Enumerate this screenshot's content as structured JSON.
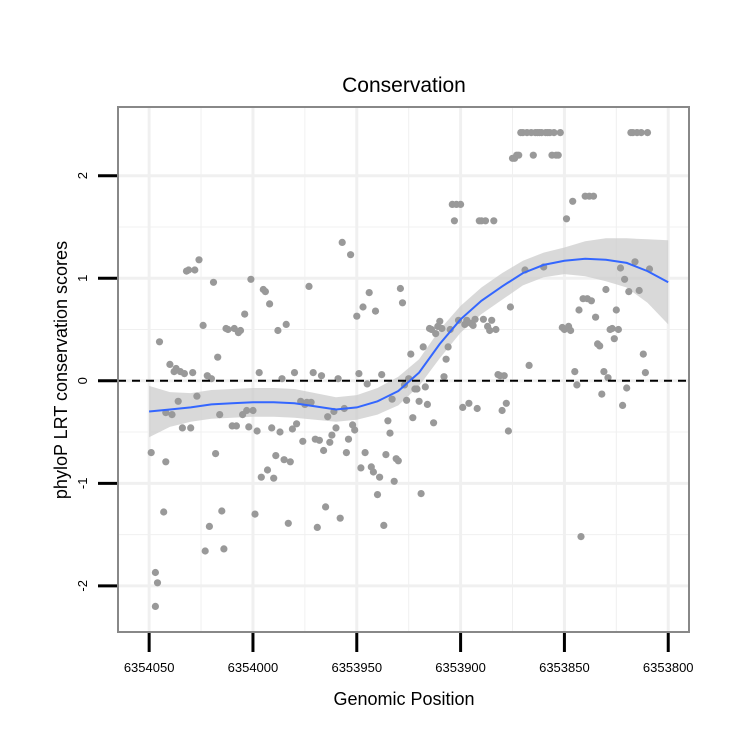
{
  "chart_data": {
    "type": "scatter",
    "title": "Conservation",
    "xlabel": "Genomic Position",
    "ylabel": "phyloP LRT conservation scores",
    "x_reversed": true,
    "xlim": [
      6354065,
      6353790
    ],
    "ylim": [
      -2.45,
      2.67
    ],
    "xticks": [
      6354050,
      6354000,
      6353950,
      6353900,
      6353850,
      6353800
    ],
    "xtick_labels": [
      "6354050",
      "6354000",
      "6353950",
      "6353900",
      "6353850",
      "6353800"
    ],
    "yticks": [
      -2,
      -1,
      0,
      1,
      2
    ],
    "ytick_labels": [
      "-2",
      "-1",
      "0",
      "1",
      "2"
    ],
    "reference_line": {
      "y": 0,
      "style": "dashed"
    },
    "grid": true,
    "legend": "none",
    "colors": {
      "points": "#999999",
      "smooth_line": "#3366ff",
      "confidence_band": "#cccccc",
      "grid": "#f0f0f0",
      "panel_border": "#888888"
    },
    "points": [
      [
        6354049,
        -0.7
      ],
      [
        6354047,
        -1.87
      ],
      [
        6354047,
        -2.2
      ],
      [
        6354046,
        -1.97
      ],
      [
        6354045,
        0.38
      ],
      [
        6354043,
        -1.28
      ],
      [
        6354042,
        -0.79
      ],
      [
        6354042,
        -0.31
      ],
      [
        6354040,
        0.16
      ],
      [
        6354039,
        -0.33
      ],
      [
        6354038,
        0.09
      ],
      [
        6354037,
        0.12
      ],
      [
        6354036,
        -0.2
      ],
      [
        6354035,
        0.09
      ],
      [
        6354034,
        -0.46
      ],
      [
        6354033,
        0.07
      ],
      [
        6354032,
        1.07
      ],
      [
        6354031,
        1.08
      ],
      [
        6354030,
        -0.46
      ],
      [
        6354029,
        0.08
      ],
      [
        6354028,
        1.08
      ],
      [
        6354027,
        -0.15
      ],
      [
        6354026,
        1.18
      ],
      [
        6354024,
        0.54
      ],
      [
        6354023,
        -1.66
      ],
      [
        6354022,
        0.05
      ],
      [
        6354021,
        -1.42
      ],
      [
        6354020,
        0.02
      ],
      [
        6354019,
        0.96
      ],
      [
        6354018,
        -0.71
      ],
      [
        6354017,
        0.23
      ],
      [
        6354016,
        -0.33
      ],
      [
        6354015,
        -1.27
      ],
      [
        6354014,
        -1.64
      ],
      [
        6354013,
        0.51
      ],
      [
        6354012,
        0.5
      ],
      [
        6354010,
        -0.44
      ],
      [
        6354009,
        0.51
      ],
      [
        6354008,
        -0.44
      ],
      [
        6354007,
        0.47
      ],
      [
        6354006,
        0.49
      ],
      [
        6354005,
        -0.33
      ],
      [
        6354004,
        0.65
      ],
      [
        6354003,
        -0.29
      ],
      [
        6354002,
        -0.45
      ],
      [
        6354001,
        0.99
      ],
      [
        6354000,
        -0.29
      ],
      [
        6353999,
        -1.3
      ],
      [
        6353998,
        -0.49
      ],
      [
        6353997,
        0.08
      ],
      [
        6353996,
        -0.94
      ],
      [
        6353995,
        0.89
      ],
      [
        6353994,
        0.87
      ],
      [
        6353993,
        -0.87
      ],
      [
        6353992,
        0.75
      ],
      [
        6353991,
        -0.46
      ],
      [
        6353990,
        -0.95
      ],
      [
        6353989,
        -0.73
      ],
      [
        6353988,
        0.49
      ],
      [
        6353987,
        -0.5
      ],
      [
        6353986,
        0.02
      ],
      [
        6353985,
        -0.77
      ],
      [
        6353984,
        0.55
      ],
      [
        6353983,
        -1.39
      ],
      [
        6353982,
        -0.79
      ],
      [
        6353981,
        -0.47
      ],
      [
        6353980,
        0.08
      ],
      [
        6353979,
        -0.42
      ],
      [
        6353977,
        -0.2
      ],
      [
        6353976,
        -0.59
      ],
      [
        6353975,
        -0.23
      ],
      [
        6353974,
        -0.21
      ],
      [
        6353973,
        0.92
      ],
      [
        6353972,
        -0.21
      ],
      [
        6353971,
        0.08
      ],
      [
        6353970,
        -0.57
      ],
      [
        6353969,
        -1.43
      ],
      [
        6353968,
        -0.58
      ],
      [
        6353967,
        0.05
      ],
      [
        6353966,
        -0.68
      ],
      [
        6353965,
        -1.23
      ],
      [
        6353964,
        -0.35
      ],
      [
        6353963,
        -0.6
      ],
      [
        6353962,
        -0.53
      ],
      [
        6353961,
        -0.3
      ],
      [
        6353960,
        -0.46
      ],
      [
        6353959,
        0.02
      ],
      [
        6353958,
        -1.34
      ],
      [
        6353957,
        1.35
      ],
      [
        6353956,
        -0.27
      ],
      [
        6353955,
        -0.7
      ],
      [
        6353954,
        -0.57
      ],
      [
        6353953,
        1.23
      ],
      [
        6353952,
        -0.43
      ],
      [
        6353951,
        -0.48
      ],
      [
        6353950,
        0.63
      ],
      [
        6353949,
        0.07
      ],
      [
        6353948,
        -0.85
      ],
      [
        6353947,
        0.72
      ],
      [
        6353946,
        -0.7
      ],
      [
        6353945,
        -0.03
      ],
      [
        6353944,
        0.86
      ],
      [
        6353943,
        -0.84
      ],
      [
        6353942,
        -0.89
      ],
      [
        6353941,
        0.68
      ],
      [
        6353940,
        -1.11
      ],
      [
        6353939,
        -0.94
      ],
      [
        6353938,
        0.06
      ],
      [
        6353937,
        -1.41
      ],
      [
        6353936,
        -0.72
      ],
      [
        6353935,
        -0.39
      ],
      [
        6353934,
        -0.51
      ],
      [
        6353933,
        -0.18
      ],
      [
        6353932,
        -0.98
      ],
      [
        6353931,
        -0.76
      ],
      [
        6353930,
        -0.78
      ],
      [
        6353929,
        0.9
      ],
      [
        6353928,
        0.76
      ],
      [
        6353927,
        -0.04
      ],
      [
        6353926,
        -0.19
      ],
      [
        6353925,
        0.02
      ],
      [
        6353924,
        0.26
      ],
      [
        6353923,
        -0.36
      ],
      [
        6353922,
        -0.08
      ],
      [
        6353921,
        -0.08
      ],
      [
        6353920,
        -0.2
      ],
      [
        6353919,
        -1.1
      ],
      [
        6353918,
        0.33
      ],
      [
        6353917,
        -0.06
      ],
      [
        6353916,
        -0.23
      ],
      [
        6353915,
        0.51
      ],
      [
        6353914,
        0.5
      ],
      [
        6353913,
        -0.41
      ],
      [
        6353912,
        0.46
      ],
      [
        6353911,
        0.53
      ],
      [
        6353910,
        0.58
      ],
      [
        6353909,
        0.51
      ],
      [
        6353908,
        0.04
      ],
      [
        6353907,
        0.21
      ],
      [
        6353906,
        0.33
      ],
      [
        6353905,
        0.5
      ],
      [
        6353904,
        1.72
      ],
      [
        6353903,
        1.56
      ],
      [
        6353902,
        1.72
      ],
      [
        6353901,
        0.59
      ],
      [
        6353900,
        1.72
      ],
      [
        6353899,
        -0.26
      ],
      [
        6353898,
        0.55
      ],
      [
        6353897,
        0.59
      ],
      [
        6353896,
        -0.22
      ],
      [
        6353895,
        0.56
      ],
      [
        6353894,
        0.54
      ],
      [
        6353893,
        0.6
      ],
      [
        6353892,
        -0.27
      ],
      [
        6353891,
        1.56
      ],
      [
        6353890,
        1.56
      ],
      [
        6353889,
        0.6
      ],
      [
        6353888,
        1.56
      ],
      [
        6353887,
        0.53
      ],
      [
        6353886,
        0.49
      ],
      [
        6353885,
        0.59
      ],
      [
        6353884,
        1.56
      ],
      [
        6353883,
        0.5
      ],
      [
        6353882,
        0.06
      ],
      [
        6353881,
        0.05
      ],
      [
        6353880,
        -0.29
      ],
      [
        6353879,
        0.05
      ],
      [
        6353878,
        -0.22
      ],
      [
        6353877,
        -0.49
      ],
      [
        6353876,
        0.72
      ],
      [
        6353875,
        2.17
      ],
      [
        6353874,
        2.17
      ],
      [
        6353873,
        2.2
      ],
      [
        6353872,
        2.2
      ],
      [
        6353871,
        2.42
      ],
      [
        6353870,
        2.42
      ],
      [
        6353869,
        1.08
      ],
      [
        6353868,
        2.42
      ],
      [
        6353867,
        0.15
      ],
      [
        6353866,
        2.42
      ],
      [
        6353865,
        2.2
      ],
      [
        6353864,
        2.42
      ],
      [
        6353863,
        2.42
      ],
      [
        6353862,
        2.42
      ],
      [
        6353861,
        2.42
      ],
      [
        6353860,
        1.11
      ],
      [
        6353859,
        2.42
      ],
      [
        6353858,
        2.42
      ],
      [
        6353857,
        2.42
      ],
      [
        6353856,
        2.2
      ],
      [
        6353855,
        2.42
      ],
      [
        6353854,
        2.2
      ],
      [
        6353853,
        2.2
      ],
      [
        6353852,
        2.42
      ],
      [
        6353851,
        0.52
      ],
      [
        6353850,
        0.5
      ],
      [
        6353849,
        1.58
      ],
      [
        6353848,
        0.53
      ],
      [
        6353847,
        0.49
      ],
      [
        6353846,
        1.75
      ],
      [
        6353845,
        0.09
      ],
      [
        6353844,
        -0.04
      ],
      [
        6353843,
        0.69
      ],
      [
        6353842,
        -1.52
      ],
      [
        6353841,
        0.8
      ],
      [
        6353840,
        1.8
      ],
      [
        6353839,
        0.8
      ],
      [
        6353838,
        1.8
      ],
      [
        6353837,
        0.78
      ],
      [
        6353836,
        1.8
      ],
      [
        6353835,
        0.62
      ],
      [
        6353834,
        0.36
      ],
      [
        6353833,
        0.34
      ],
      [
        6353832,
        -0.13
      ],
      [
        6353831,
        0.09
      ],
      [
        6353830,
        0.89
      ],
      [
        6353829,
        0.03
      ],
      [
        6353828,
        0.5
      ],
      [
        6353827,
        0.51
      ],
      [
        6353826,
        0.41
      ],
      [
        6353825,
        0.69
      ],
      [
        6353824,
        0.5
      ],
      [
        6353823,
        1.1
      ],
      [
        6353822,
        -0.24
      ],
      [
        6353821,
        0.99
      ],
      [
        6353820,
        -0.07
      ],
      [
        6353819,
        0.87
      ],
      [
        6353818,
        2.42
      ],
      [
        6353817,
        2.42
      ],
      [
        6353816,
        1.16
      ],
      [
        6353815,
        2.42
      ],
      [
        6353814,
        0.88
      ],
      [
        6353813,
        2.42
      ],
      [
        6353812,
        0.26
      ],
      [
        6353811,
        0.08
      ],
      [
        6353810,
        2.42
      ],
      [
        6353809,
        1.09
      ]
    ],
    "smooth": {
      "x": [
        6354050,
        6354040,
        6354030,
        6354020,
        6354010,
        6354000,
        6353990,
        6353980,
        6353970,
        6353960,
        6353950,
        6353940,
        6353930,
        6353920,
        6353910,
        6353900,
        6353890,
        6353880,
        6353870,
        6353860,
        6353850,
        6353840,
        6353830,
        6353820,
        6353810,
        6353800
      ],
      "y": [
        -0.3,
        -0.28,
        -0.26,
        -0.23,
        -0.22,
        -0.21,
        -0.21,
        -0.22,
        -0.25,
        -0.28,
        -0.26,
        -0.2,
        -0.1,
        0.08,
        0.36,
        0.6,
        0.78,
        0.92,
        1.05,
        1.13,
        1.17,
        1.19,
        1.18,
        1.15,
        1.07,
        0.96
      ],
      "lower": [
        -0.55,
        -0.45,
        -0.4,
        -0.37,
        -0.36,
        -0.35,
        -0.35,
        -0.36,
        -0.38,
        -0.4,
        -0.38,
        -0.33,
        -0.24,
        -0.05,
        0.22,
        0.47,
        0.65,
        0.79,
        0.93,
        1.01,
        1.04,
        1.02,
        0.97,
        0.91,
        0.76,
        0.55
      ],
      "upper": [
        -0.05,
        -0.11,
        -0.12,
        -0.09,
        -0.08,
        -0.07,
        -0.07,
        -0.08,
        -0.12,
        -0.16,
        -0.14,
        -0.07,
        0.04,
        0.21,
        0.5,
        0.73,
        0.91,
        1.05,
        1.17,
        1.25,
        1.3,
        1.36,
        1.39,
        1.39,
        1.38,
        1.37
      ]
    }
  }
}
